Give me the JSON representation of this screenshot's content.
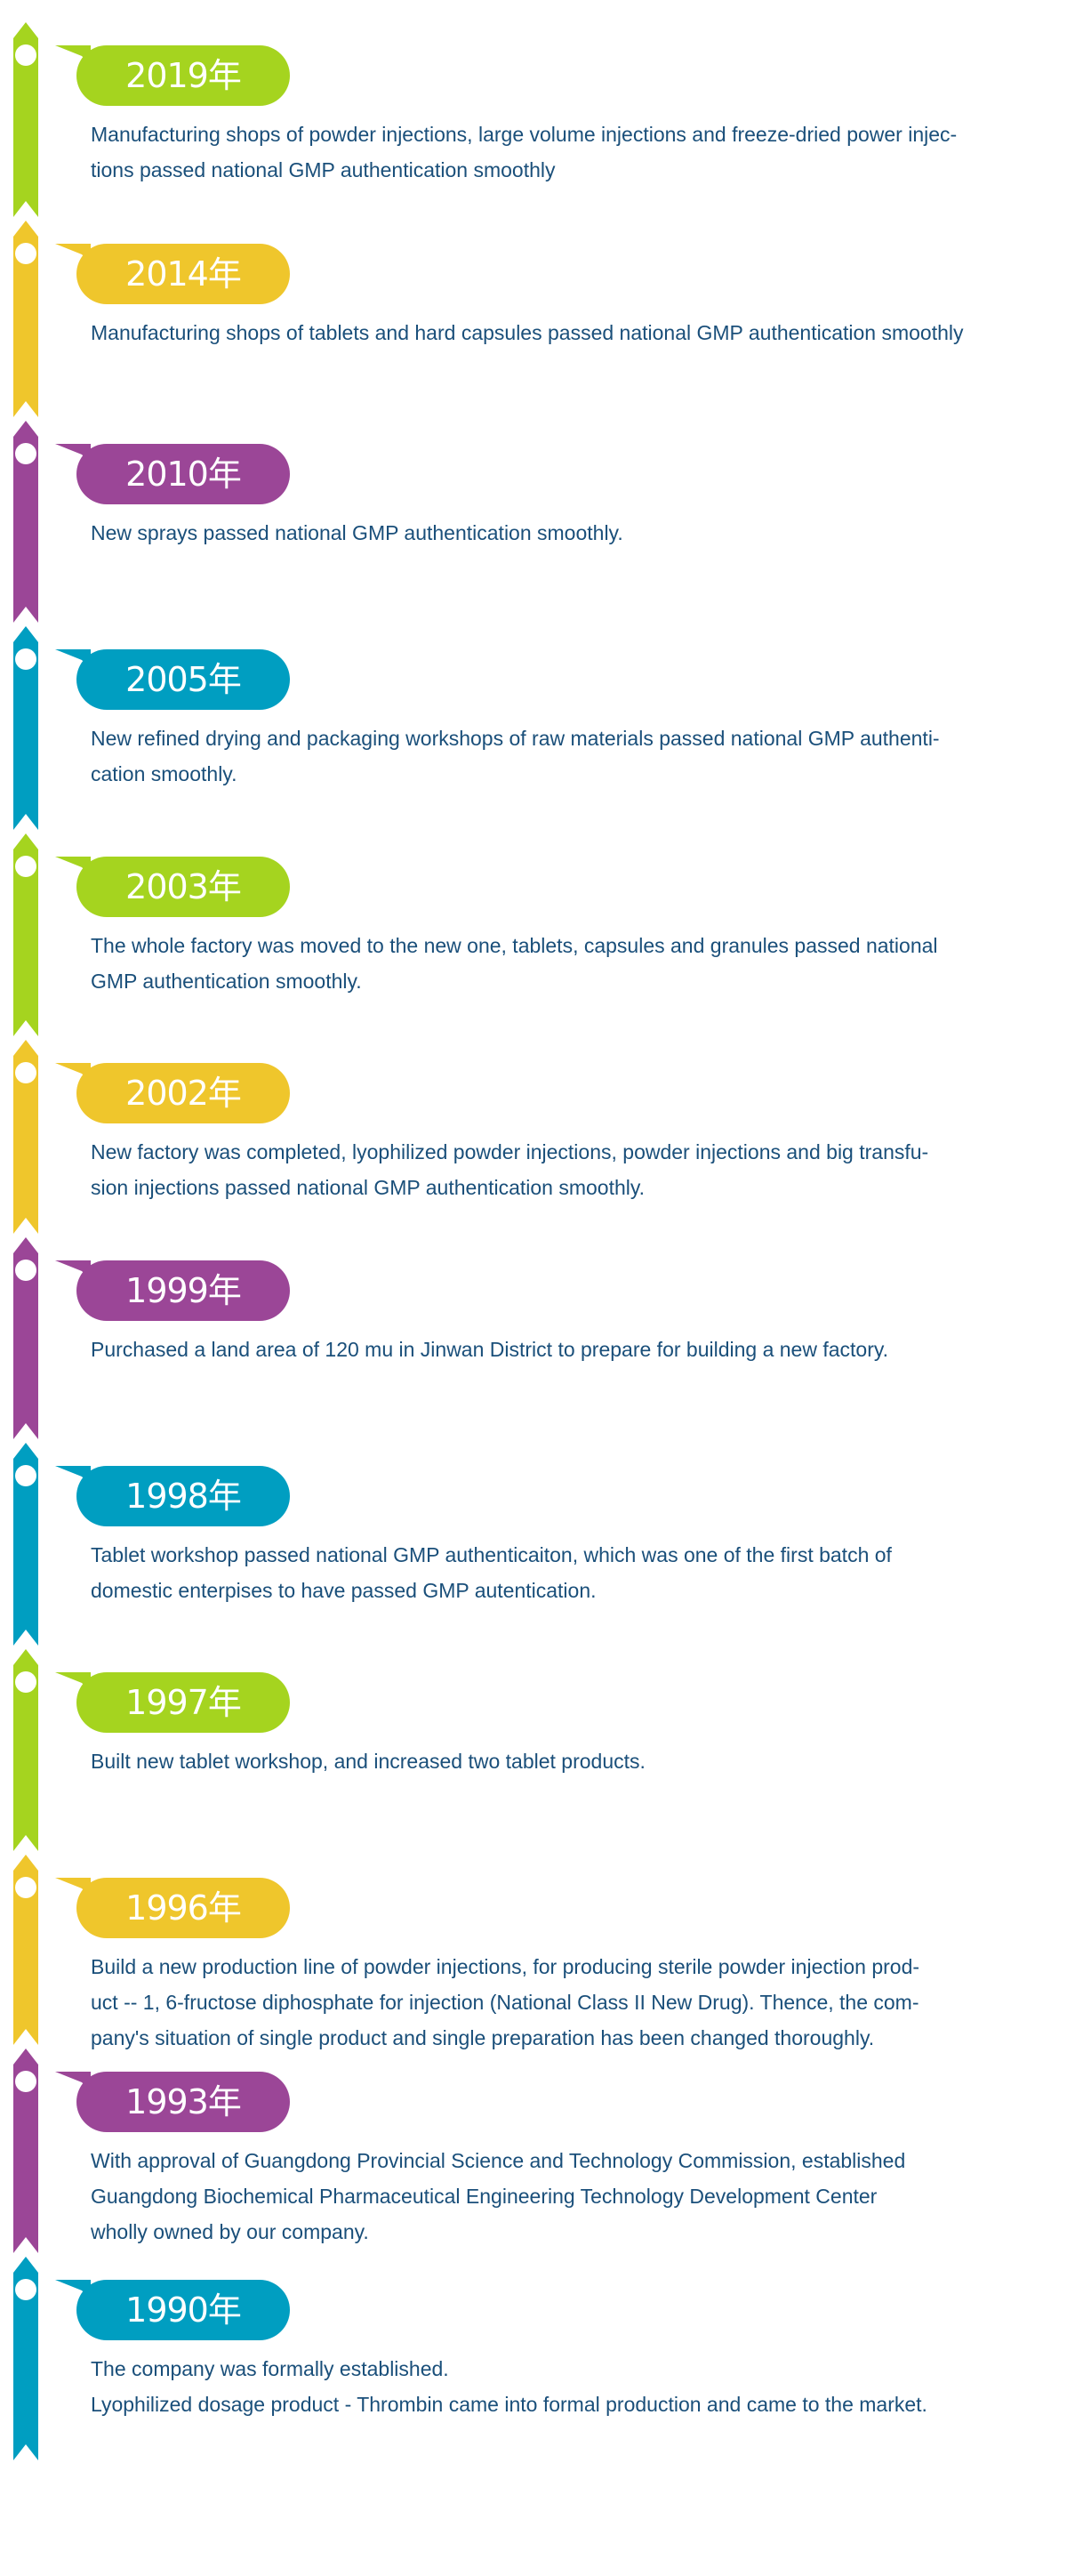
{
  "colors": {
    "green": "#a5d41f",
    "yellow": "#efc62c",
    "purple": "#9b4697",
    "blue": "#009ec1",
    "text": "#1a4f7a"
  },
  "timeline": [
    {
      "year": "2019年",
      "color": "green",
      "lines": [
        "Manufacturing shops of powder injections, large volume injections and freeze-dried power injec-",
        "tions passed national GMP authentication smoothly"
      ]
    },
    {
      "year": "2014年",
      "color": "yellow",
      "lines": [
        "Manufacturing shops of tablets and hard capsules passed national GMP authentication smoothly"
      ]
    },
    {
      "year": "2010年",
      "color": "purple",
      "lines": [
        "New sprays passed national GMP authentication smoothly."
      ]
    },
    {
      "year": "2005年",
      "color": "blue",
      "lines": [
        "New refined drying and packaging workshops of raw materials passed national GMP authenti-",
        "cation smoothly."
      ]
    },
    {
      "year": "2003年",
      "color": "green",
      "lines": [
        "The whole factory was moved to the new one, tablets, capsules and granules passed national",
        "GMP authentication smoothly."
      ]
    },
    {
      "year": "2002年",
      "color": "yellow",
      "lines": [
        "New factory was completed, lyophilized powder injections, powder injections and big transfu-",
        "sion injections passed national GMP authentication smoothly."
      ]
    },
    {
      "year": "1999年",
      "color": "purple",
      "lines": [
        "Purchased a land area of 120 mu in Jinwan District to prepare for building a new factory."
      ]
    },
    {
      "year": "1998年",
      "color": "blue",
      "lines": [
        "Tablet workshop passed national GMP authenticaiton, which was one of the first batch of",
        "domestic enterpises to have passed GMP autentication."
      ]
    },
    {
      "year": "1997年",
      "color": "green",
      "lines": [
        "Built new tablet workshop, and increased two tablet products."
      ]
    },
    {
      "year": "1996年",
      "color": "yellow",
      "lines": [
        "Build a new production line of powder injections, for producing sterile powder injection prod-",
        "uct -- 1, 6-fructose diphosphate for injection (National Class II New Drug). Thence, the com-",
        "pany's situation of single product and single preparation has been changed thoroughly."
      ]
    },
    {
      "year": "1993年",
      "color": "purple",
      "lines": [
        "With approval of Guangdong Provincial Science and Technology Commission, established",
        "Guangdong Biochemical Pharmaceutical Engineering Technology Development Center",
        "wholly owned by our company."
      ]
    },
    {
      "year": "1990年",
      "color": "blue",
      "lines": [
        "The company was formally established.",
        "Lyophilized dosage product - Thrombin came into formal production and came to the market."
      ]
    }
  ]
}
